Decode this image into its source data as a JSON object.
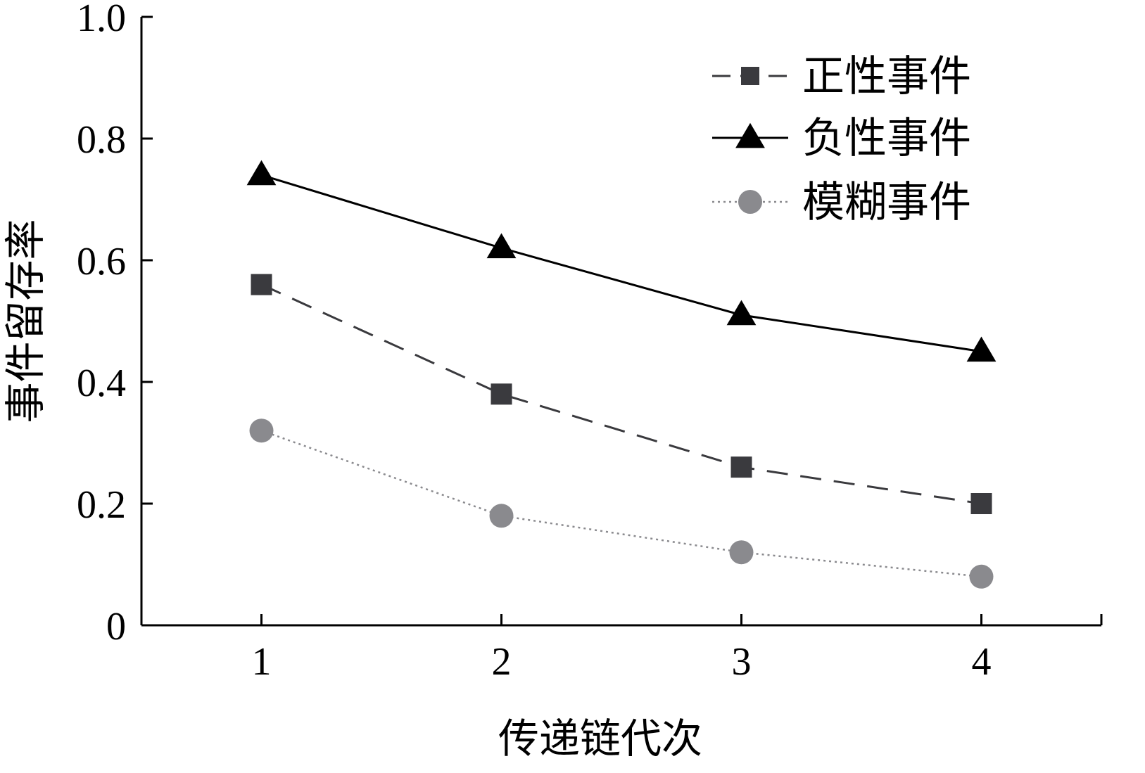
{
  "chart_data": {
    "type": "line",
    "title": "",
    "xlabel": "传递链代次",
    "ylabel": "事件留存率",
    "x": [
      1,
      2,
      3,
      4
    ],
    "xlim": [
      0.5,
      4.5
    ],
    "ylim": [
      0,
      1.0
    ],
    "x_ticks": [
      1,
      2,
      3,
      4
    ],
    "x_tick_labels": [
      "1",
      "2",
      "3",
      "4"
    ],
    "y_ticks": [
      0,
      0.2,
      0.4,
      0.6,
      0.8,
      1.0
    ],
    "y_tick_labels": [
      "0",
      "0.2",
      "0.4",
      "0.6",
      "0.8",
      "1.0"
    ],
    "grid": false,
    "legend_position": "top-right",
    "series": [
      {
        "name": "正性事件",
        "values": [
          0.56,
          0.38,
          0.26,
          0.2
        ],
        "color": "#3a3a3e",
        "line_style": "dashed",
        "marker": "square"
      },
      {
        "name": "负性事件",
        "values": [
          0.74,
          0.62,
          0.51,
          0.45
        ],
        "color": "#000000",
        "line_style": "solid",
        "marker": "triangle"
      },
      {
        "name": "模糊事件",
        "values": [
          0.32,
          0.18,
          0.12,
          0.08
        ],
        "color": "#8a8a8e",
        "line_style": "dotted",
        "marker": "circle"
      }
    ]
  }
}
